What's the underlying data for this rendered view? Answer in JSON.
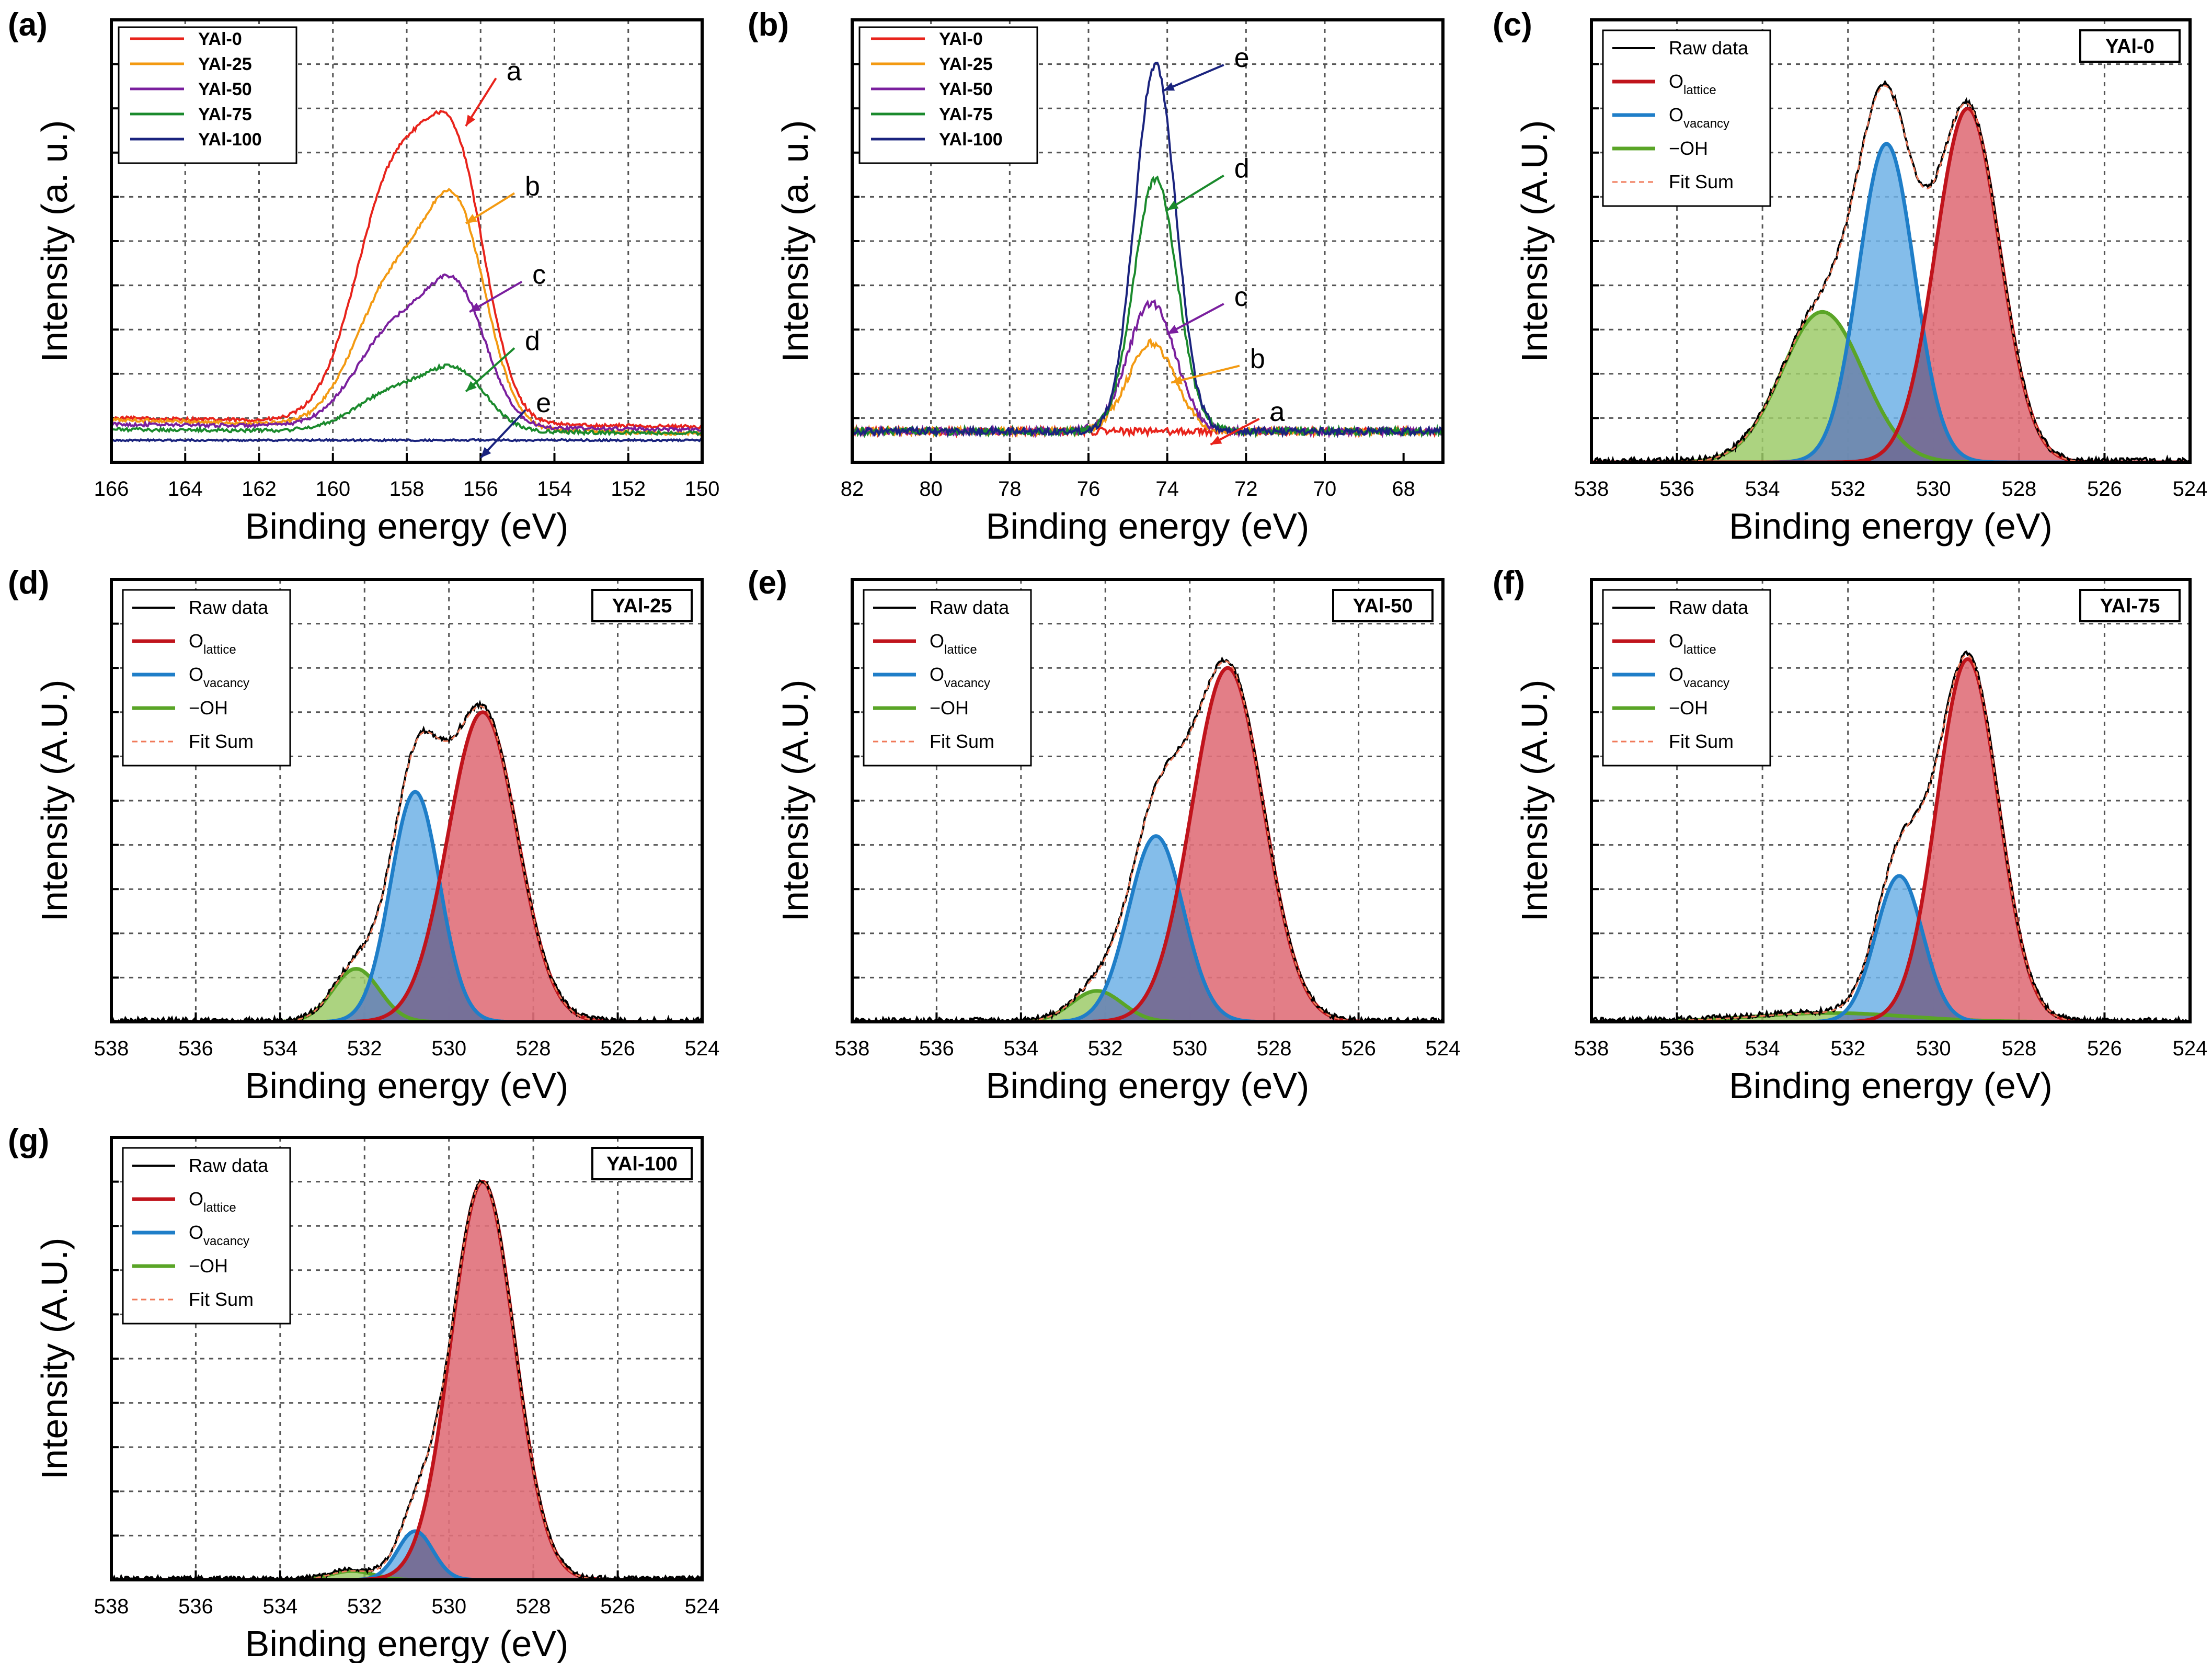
{
  "figure": {
    "background": "#ffffff"
  },
  "colors": {
    "red": "#e8231b",
    "orange": "#f39a12",
    "purple": "#7a1f9e",
    "green": "#1a8a2c",
    "navy": "#1a237e",
    "raw": "#000000",
    "lattice": "#c0141c",
    "lattice_fill": "#e0707a",
    "vacancy": "#1f7ec8",
    "vacancy_fill": "#6fb2e6",
    "oh": "#5aa527",
    "oh_fill": "#9ecb6a",
    "overlap_fill": "#6b6f9a",
    "fitsum": "#f07a5a",
    "grid": "#555555"
  },
  "chart_data": [
    {
      "id": "a",
      "panel_label": "(a)",
      "type": "line",
      "xlabel": "Binding energy (eV)",
      "ylabel": "Intensity (a. u.)",
      "xlim": [
        166,
        150
      ],
      "xticks": [
        166,
        164,
        162,
        160,
        158,
        156,
        154,
        152,
        150
      ],
      "ylim": [
        0,
        1
      ],
      "legend_position": "top-left",
      "series": [
        {
          "name": "YAl-0",
          "color": "red",
          "baseline": 0.04,
          "tilt": 0.05,
          "noise": 0.004,
          "peaks": [
            [
              158.3,
              0.56,
              1.05
            ],
            [
              156.6,
              0.5,
              0.8
            ]
          ]
        },
        {
          "name": "YAl-25",
          "color": "orange",
          "baseline": 0.03,
          "tilt": 0.08,
          "noise": 0.004,
          "peaks": [
            [
              158.3,
              0.33,
              1.05
            ],
            [
              156.6,
              0.43,
              0.8
            ]
          ]
        },
        {
          "name": "YAl-50",
          "color": "purple",
          "baseline": 0.03,
          "tilt": 0.03,
          "noise": 0.004,
          "peaks": [
            [
              158.3,
              0.22,
              1.05
            ],
            [
              156.6,
              0.27,
              0.8
            ]
          ]
        },
        {
          "name": "YAl-75",
          "color": "green",
          "baseline": 0.02,
          "tilt": 0.02,
          "noise": 0.004,
          "peaks": [
            [
              158.3,
              0.09,
              1.05
            ],
            [
              156.6,
              0.12,
              0.8
            ]
          ]
        },
        {
          "name": "YAl-100",
          "color": "navy",
          "baseline": 0.0,
          "tilt": 0.0,
          "noise": 0.002,
          "peaks": []
        }
      ],
      "annotations": [
        {
          "text": "a",
          "x": 155.3,
          "y": 0.88,
          "ax": 156.4,
          "ay": 0.76,
          "color": "red"
        },
        {
          "text": "b",
          "x": 154.8,
          "y": 0.62,
          "ax": 156.4,
          "ay": 0.54,
          "color": "orange"
        },
        {
          "text": "c",
          "x": 154.6,
          "y": 0.42,
          "ax": 156.3,
          "ay": 0.34,
          "color": "purple"
        },
        {
          "text": "d",
          "x": 154.8,
          "y": 0.27,
          "ax": 156.4,
          "ay": 0.16,
          "color": "green"
        },
        {
          "text": "e",
          "x": 154.5,
          "y": 0.13,
          "ax": 156.0,
          "ay": 0.01,
          "color": "navy"
        }
      ]
    },
    {
      "id": "b",
      "panel_label": "(b)",
      "type": "line",
      "xlabel": "Binding energy (eV)",
      "ylabel": "Intensity (a. u.)",
      "xlim": [
        82,
        67
      ],
      "xticks": [
        82,
        80,
        78,
        76,
        74,
        72,
        70,
        68
      ],
      "ylim": [
        0,
        1
      ],
      "legend_position": "top-left",
      "series": [
        {
          "name": "YAl-0",
          "color": "red",
          "baseline": 0.02,
          "tilt": 0.0,
          "noise": 0.008,
          "peaks": []
        },
        {
          "name": "YAl-25",
          "color": "orange",
          "baseline": 0.02,
          "tilt": 0.0,
          "noise": 0.008,
          "peaks": [
            [
              74.4,
              0.2,
              0.6
            ]
          ]
        },
        {
          "name": "YAl-50",
          "color": "purple",
          "baseline": 0.02,
          "tilt": 0.0,
          "noise": 0.008,
          "peaks": [
            [
              74.4,
              0.29,
              0.6
            ]
          ]
        },
        {
          "name": "YAl-75",
          "color": "green",
          "baseline": 0.02,
          "tilt": 0.0,
          "noise": 0.008,
          "peaks": [
            [
              74.3,
              0.57,
              0.55
            ]
          ]
        },
        {
          "name": "YAl-100",
          "color": "navy",
          "baseline": 0.02,
          "tilt": 0.0,
          "noise": 0.008,
          "peaks": [
            [
              74.3,
              0.83,
              0.52
            ]
          ]
        }
      ],
      "annotations": [
        {
          "text": "e",
          "x": 72.3,
          "y": 0.91,
          "ax": 74.1,
          "ay": 0.84,
          "color": "navy"
        },
        {
          "text": "d",
          "x": 72.3,
          "y": 0.66,
          "ax": 74.0,
          "ay": 0.57,
          "color": "green"
        },
        {
          "text": "c",
          "x": 72.3,
          "y": 0.37,
          "ax": 74.0,
          "ay": 0.29,
          "color": "purple"
        },
        {
          "text": "b",
          "x": 71.9,
          "y": 0.23,
          "ax": 73.9,
          "ay": 0.18,
          "color": "orange"
        },
        {
          "text": "a",
          "x": 71.4,
          "y": 0.11,
          "ax": 72.9,
          "ay": 0.04,
          "color": "red"
        }
      ]
    },
    {
      "id": "c",
      "panel_label": "(c)",
      "type": "area",
      "sample": "YAl-0",
      "xlabel": "Binding energy (eV)",
      "ylabel": "Intensity (A.U.)",
      "xlim": [
        538,
        524
      ],
      "xticks": [
        538,
        536,
        534,
        532,
        530,
        528,
        526,
        524
      ],
      "ylim": [
        0,
        1
      ],
      "legend": [
        "Raw data",
        "O_lattice",
        "O_vacancy",
        "−OH",
        "Fit Sum"
      ],
      "components": {
        "lattice": [
          529.2,
          0.8,
          0.75
        ],
        "vacancy": [
          531.1,
          0.72,
          0.65
        ],
        "oh": [
          532.6,
          0.34,
          0.95
        ]
      },
      "raw_noise": 0.007
    },
    {
      "id": "d",
      "panel_label": "(d)",
      "type": "area",
      "sample": "YAl-25",
      "xlabel": "Binding energy (eV)",
      "ylabel": "Intensity (A.U.)",
      "xlim": [
        538,
        524
      ],
      "xticks": [
        538,
        536,
        534,
        532,
        530,
        528,
        526,
        524
      ],
      "ylim": [
        0,
        1
      ],
      "legend": [
        "Raw data",
        "O_lattice",
        "O_vacancy",
        "−OH",
        "Fit Sum"
      ],
      "components": {
        "lattice": [
          529.2,
          0.7,
          0.82
        ],
        "vacancy": [
          530.8,
          0.52,
          0.58
        ],
        "oh": [
          532.2,
          0.12,
          0.55
        ]
      },
      "raw_noise": 0.006
    },
    {
      "id": "e",
      "panel_label": "(e)",
      "type": "area",
      "sample": "YAl-50",
      "xlabel": "Binding energy (eV)",
      "ylabel": "Intensity (A.U.)",
      "xlim": [
        538,
        524
      ],
      "xticks": [
        538,
        536,
        534,
        532,
        530,
        528,
        526,
        524
      ],
      "ylim": [
        0,
        1
      ],
      "legend": [
        "Raw data",
        "O_lattice",
        "O_vacancy",
        "−OH",
        "Fit Sum"
      ],
      "components": {
        "lattice": [
          529.1,
          0.8,
          0.85
        ],
        "vacancy": [
          530.8,
          0.42,
          0.65
        ],
        "oh": [
          532.2,
          0.07,
          0.6
        ]
      },
      "raw_noise": 0.006
    },
    {
      "id": "f",
      "panel_label": "(f)",
      "type": "area",
      "sample": "YAl-75",
      "xlabel": "Binding energy (eV)",
      "ylabel": "Intensity (A.U.)",
      "xlim": [
        538,
        524
      ],
      "xticks": [
        538,
        536,
        534,
        532,
        530,
        528,
        526,
        524
      ],
      "ylim": [
        0,
        1
      ],
      "legend": [
        "Raw data",
        "O_lattice",
        "O_vacancy",
        "−OH",
        "Fit Sum"
      ],
      "components": {
        "lattice": [
          529.2,
          0.82,
          0.72
        ],
        "vacancy": [
          530.8,
          0.33,
          0.55
        ],
        "oh": [
          532.4,
          0.02,
          1.8
        ]
      },
      "raw_noise": 0.006
    },
    {
      "id": "g",
      "panel_label": "(g)",
      "type": "area",
      "sample": "YAl-100",
      "xlabel": "Binding energy (eV)",
      "ylabel": "Intensity (A.U.)",
      "xlim": [
        538,
        524
      ],
      "xticks": [
        538,
        536,
        534,
        532,
        530,
        528,
        526,
        524
      ],
      "ylim": [
        0,
        1
      ],
      "legend": [
        "Raw data",
        "O_lattice",
        "O_vacancy",
        "−OH",
        "Fit Sum"
      ],
      "components": {
        "lattice": [
          529.2,
          0.9,
          0.75
        ],
        "vacancy": [
          530.8,
          0.11,
          0.42
        ],
        "oh": [
          532.3,
          0.02,
          0.5
        ]
      },
      "raw_noise": 0.005
    }
  ]
}
